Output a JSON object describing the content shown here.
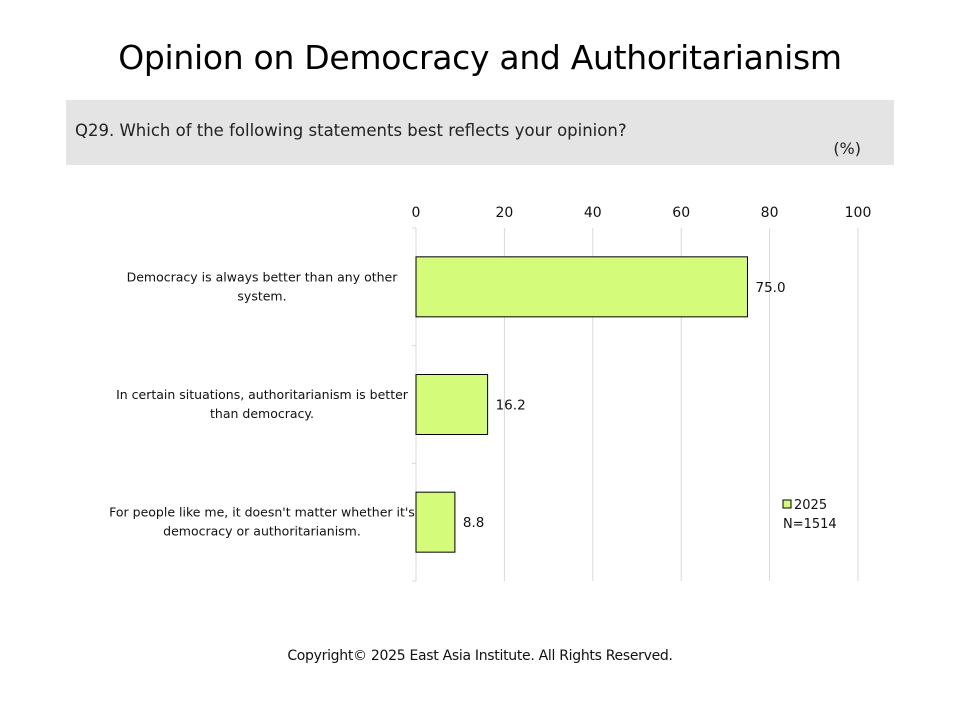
{
  "title": "Opinion on Democracy and Authoritarianism",
  "question": "Q29. Which of the following statements best reflects your opinion?",
  "unit": "(%)",
  "copyright": "Copyright© 2025 East Asia Institute. All Rights Reserved.",
  "colors": {
    "bar": "#d4fb79",
    "bar_stroke": "#000000",
    "grid": "#d9d9d9",
    "question_bg": "#e4e4e4"
  },
  "chart_data": {
    "type": "bar",
    "orientation": "horizontal",
    "categories": [
      [
        "Democracy is always better than any other",
        "system."
      ],
      [
        "In certain situations, authoritarianism is better",
        "than democracy."
      ],
      [
        "For people like me, it doesn't matter whether it's",
        "democracy or authoritarianism."
      ]
    ],
    "series": [
      {
        "name": "2025",
        "values": [
          75.0,
          16.2,
          8.8
        ]
      }
    ],
    "data_labels": [
      "75.0",
      "16.2",
      "8.8"
    ],
    "x_ticks": [
      0,
      20,
      40,
      60,
      80,
      100
    ],
    "xlim": [
      0,
      100
    ],
    "x_axis_position": "top",
    "grid": true,
    "legend": {
      "position": "bottom-right",
      "entries": [
        "2025"
      ],
      "note": "N=1514"
    }
  }
}
